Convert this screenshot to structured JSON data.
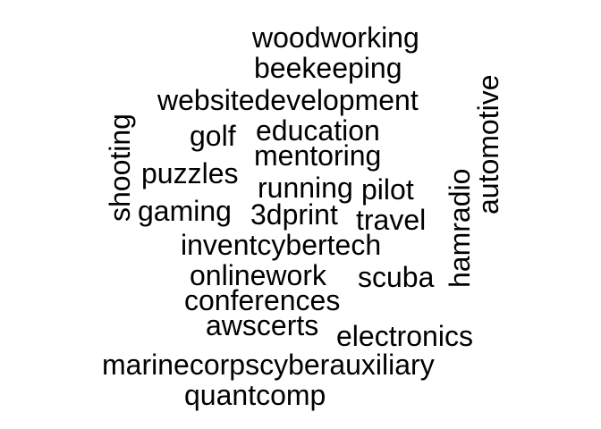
{
  "words": {
    "woodworking": "woodworking",
    "beekeeping": "beekeeping",
    "websitedevelopment": "websitedevelopment",
    "golf": "golf",
    "education": "education",
    "mentoring": "mentoring",
    "puzzles": "puzzles",
    "running": "running",
    "pilot": "pilot",
    "gaming": "gaming",
    "threedprint": "3dprint",
    "travel": "travel",
    "inventcybertech": "inventcybertech",
    "onlinework": "onlinework",
    "scuba": "scuba",
    "conferences": "conferences",
    "awscerts": "awscerts",
    "electronics": "electronics",
    "marinecorpscyberauxiliary": "marinecorpscyberauxiliary",
    "quantcomp": "quantcomp",
    "shooting": "shooting",
    "hamradio": "hamradio",
    "automotive": "automotive"
  },
  "colors": {
    "text": "#000000",
    "background": "#ffffff"
  }
}
